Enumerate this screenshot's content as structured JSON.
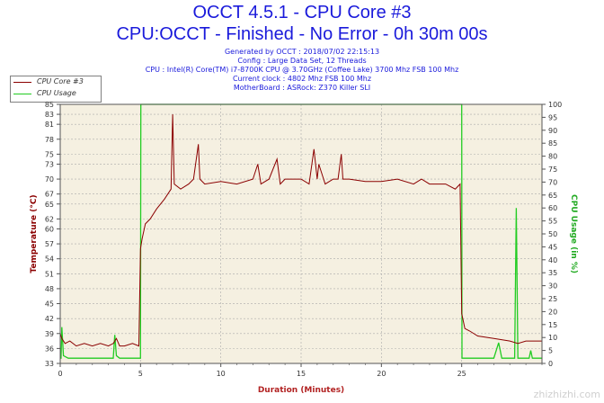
{
  "header": {
    "title": "OCCT 4.5.1 - CPU Core #3",
    "subtitle": "CPU:OCCT - Finished - No Error - 0h 30m 00s",
    "info_lines": [
      "Generated by OCCT : 2018/07/02 22:15:13",
      "Config : Large Data Set, 12 Threads",
      "CPU : Intel(R) Core(TM) i7-8700K CPU @ 3.70GHz (Coffee Lake) 3700 Mhz FSB 100 Mhz",
      "Current clock : 4802 Mhz FSB 100 Mhz",
      "MotherBoard : ASRock: Z370 Killer SLI"
    ]
  },
  "legend": {
    "items": [
      {
        "label": "CPU Core #3",
        "color": "#8b0000"
      },
      {
        "label": "CPU Usage",
        "color": "#22cc22"
      }
    ]
  },
  "watermark": "zhizhizhi.com",
  "chart_data": {
    "type": "line",
    "xlabel": "Duration (Minutes)",
    "ylabel": "Temperature (°C)",
    "y2label": "CPU Usage (in %)",
    "xlim": [
      0,
      30
    ],
    "x_ticks": [
      0,
      5,
      10,
      15,
      20,
      25
    ],
    "ylim": [
      33,
      85
    ],
    "y_ticks": [
      33,
      36,
      39,
      42,
      45,
      48,
      51,
      54,
      57,
      60,
      62,
      65,
      67,
      70,
      73,
      75,
      78,
      81,
      83,
      85
    ],
    "y2lim": [
      0,
      100
    ],
    "y2_ticks": [
      0,
      5,
      10,
      15,
      20,
      25,
      30,
      35,
      40,
      45,
      50,
      55,
      60,
      65,
      70,
      75,
      80,
      85,
      90,
      95,
      100
    ],
    "colors": {
      "plot_bg": "#f5f0e1",
      "grid": "#aaaaaa",
      "temp": "#8b0000",
      "usage": "#22cc22"
    },
    "series": [
      {
        "name": "CPU Core #3",
        "axis": "left",
        "points": [
          [
            0,
            39
          ],
          [
            0.1,
            38
          ],
          [
            0.3,
            37
          ],
          [
            0.6,
            37.5
          ],
          [
            1,
            36.5
          ],
          [
            1.5,
            37
          ],
          [
            2,
            36.5
          ],
          [
            2.5,
            37
          ],
          [
            3,
            36.5
          ],
          [
            3.3,
            37
          ],
          [
            3.5,
            38
          ],
          [
            3.7,
            36.5
          ],
          [
            4,
            36.5
          ],
          [
            4.5,
            37
          ],
          [
            4.9,
            36.5
          ],
          [
            5,
            56
          ],
          [
            5.1,
            58
          ],
          [
            5.3,
            61
          ],
          [
            5.6,
            62
          ],
          [
            6,
            64
          ],
          [
            6.5,
            66
          ],
          [
            6.9,
            68
          ],
          [
            7,
            83
          ],
          [
            7.1,
            69
          ],
          [
            7.5,
            68
          ],
          [
            8,
            69
          ],
          [
            8.3,
            70
          ],
          [
            8.6,
            77
          ],
          [
            8.7,
            70
          ],
          [
            9,
            69
          ],
          [
            10,
            69.5
          ],
          [
            11,
            69
          ],
          [
            12,
            70
          ],
          [
            12.3,
            73
          ],
          [
            12.5,
            69
          ],
          [
            13,
            70
          ],
          [
            13.5,
            74
          ],
          [
            13.7,
            69
          ],
          [
            14,
            70
          ],
          [
            15,
            70
          ],
          [
            15.5,
            69
          ],
          [
            15.8,
            76
          ],
          [
            16,
            70
          ],
          [
            16.1,
            73
          ],
          [
            16.5,
            69
          ],
          [
            17,
            70
          ],
          [
            17.3,
            70
          ],
          [
            17.5,
            75
          ],
          [
            17.6,
            70
          ],
          [
            18,
            70
          ],
          [
            19,
            69.5
          ],
          [
            20,
            69.5
          ],
          [
            21,
            70
          ],
          [
            22,
            69
          ],
          [
            22.5,
            70
          ],
          [
            23,
            69
          ],
          [
            24,
            69
          ],
          [
            24.6,
            68
          ],
          [
            24.9,
            69
          ],
          [
            25,
            43
          ],
          [
            25.2,
            40
          ],
          [
            25.5,
            39.5
          ],
          [
            26,
            38.5
          ],
          [
            27,
            38
          ],
          [
            28,
            37.5
          ],
          [
            28.5,
            37
          ],
          [
            29,
            37.5
          ],
          [
            30,
            37.5
          ]
        ]
      },
      {
        "name": "CPU Usage",
        "axis": "right",
        "points": [
          [
            0,
            2
          ],
          [
            0.05,
            2
          ],
          [
            0.1,
            14
          ],
          [
            0.2,
            3
          ],
          [
            0.5,
            2
          ],
          [
            3.3,
            2
          ],
          [
            3.4,
            11
          ],
          [
            3.5,
            3
          ],
          [
            3.7,
            2
          ],
          [
            4.9,
            2
          ],
          [
            5,
            2
          ],
          [
            5.02,
            100
          ],
          [
            25,
            100
          ],
          [
            25.02,
            2
          ],
          [
            25.5,
            2
          ],
          [
            26,
            2
          ],
          [
            27,
            2
          ],
          [
            27.3,
            8
          ],
          [
            27.5,
            2
          ],
          [
            28.3,
            2
          ],
          [
            28.4,
            60
          ],
          [
            28.5,
            2
          ],
          [
            29.2,
            2
          ],
          [
            29.3,
            5
          ],
          [
            29.4,
            2
          ],
          [
            30,
            2
          ]
        ]
      }
    ]
  }
}
